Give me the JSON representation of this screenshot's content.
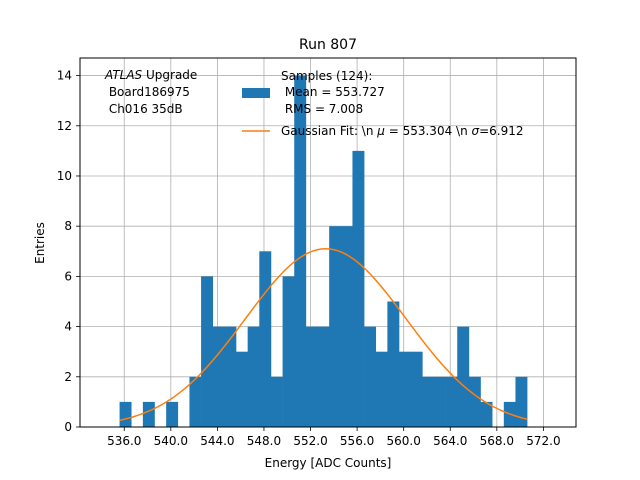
{
  "colors": {
    "histogram": "#1f77b4",
    "fit": "#ff7f0e",
    "grid": "#b0b0b0",
    "axes": "#000000"
  },
  "chart_data": {
    "type": "bar",
    "title": "Run 807",
    "xlabel": "Energy [ADC Counts]",
    "ylabel": "Entries",
    "xlim": [
      532.2,
      574.8
    ],
    "ylim": [
      0,
      14.7
    ],
    "grid": true,
    "bin_width": 1,
    "xticks": [
      536,
      540,
      544,
      548,
      552,
      556,
      560,
      564,
      568,
      572
    ],
    "xtick_labels": [
      "536.0",
      "540.0",
      "544.0",
      "548.0",
      "552.0",
      "556.0",
      "560.0",
      "564.0",
      "568.0",
      "572.0"
    ],
    "yticks": [
      0,
      2,
      4,
      6,
      8,
      10,
      12,
      14
    ],
    "ytick_labels": [
      "0",
      "2",
      "4",
      "6",
      "8",
      "10",
      "12",
      "14"
    ],
    "histogram": {
      "name": "Samples (124):\n Mean = 553.727\n RMS = 7.008",
      "bins": [
        {
          "x": 535.6,
          "count": 1
        },
        {
          "x": 537.6,
          "count": 1
        },
        {
          "x": 539.6,
          "count": 1
        },
        {
          "x": 541.6,
          "count": 2
        },
        {
          "x": 542.6,
          "count": 6
        },
        {
          "x": 543.6,
          "count": 4
        },
        {
          "x": 544.6,
          "count": 4
        },
        {
          "x": 545.6,
          "count": 3
        },
        {
          "x": 546.6,
          "count": 4
        },
        {
          "x": 547.6,
          "count": 7
        },
        {
          "x": 548.6,
          "count": 2
        },
        {
          "x": 549.6,
          "count": 6
        },
        {
          "x": 550.6,
          "count": 14
        },
        {
          "x": 551.6,
          "count": 4
        },
        {
          "x": 552.6,
          "count": 4
        },
        {
          "x": 553.6,
          "count": 8
        },
        {
          "x": 554.6,
          "count": 8
        },
        {
          "x": 555.6,
          "count": 11
        },
        {
          "x": 556.6,
          "count": 4
        },
        {
          "x": 557.6,
          "count": 3
        },
        {
          "x": 558.6,
          "count": 5
        },
        {
          "x": 559.6,
          "count": 3
        },
        {
          "x": 560.6,
          "count": 3
        },
        {
          "x": 561.6,
          "count": 2
        },
        {
          "x": 562.6,
          "count": 2
        },
        {
          "x": 563.6,
          "count": 2
        },
        {
          "x": 564.6,
          "count": 4
        },
        {
          "x": 565.6,
          "count": 2
        },
        {
          "x": 566.6,
          "count": 1
        },
        {
          "x": 568.6,
          "count": 1
        },
        {
          "x": 569.6,
          "count": 2
        }
      ]
    },
    "fit": {
      "name": "Gaussian Fit: \\n μ = 553.304 \\n σ=6.912",
      "label_prefix": "Gaussian Fit: \\n ",
      "mu_symbol": "μ",
      "mu_text": " = 553.304 \\n ",
      "sigma_symbol": "σ",
      "sigma_text": "=6.912",
      "mu": 553.304,
      "sigma": 6.912,
      "amplitude": 7.1,
      "x_range": [
        535.6,
        570.6
      ]
    },
    "annotation": {
      "atlas": "ATLAS",
      "upgrade": " Upgrade",
      "line2": " Board186975",
      "line3": " Ch016 35dB"
    },
    "legend": {
      "position": "top-right",
      "samples_lines": [
        "Samples (124):",
        " Mean = 553.727",
        " RMS = 7.008"
      ]
    }
  }
}
